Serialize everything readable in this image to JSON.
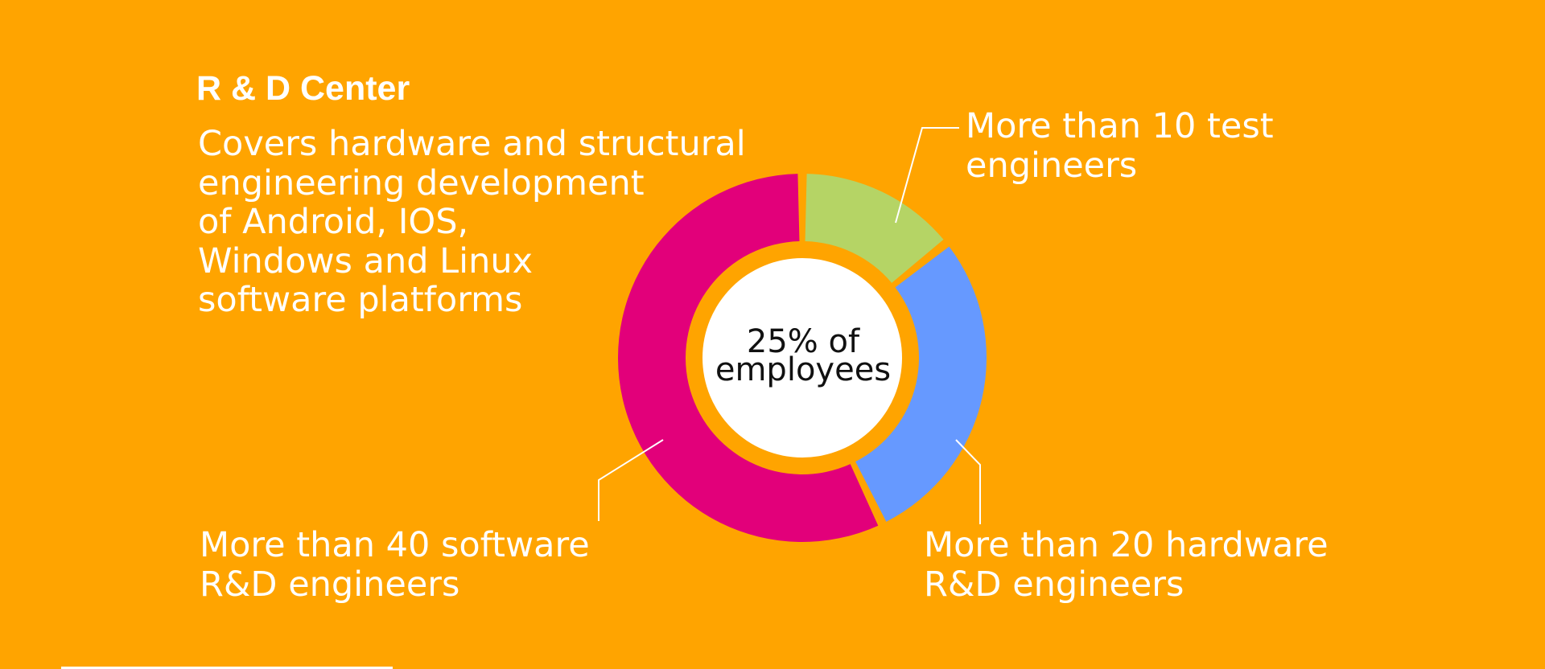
{
  "heading": "R & D Center",
  "description": [
    "Covers hardware and structural",
    "engineering development",
    "of Android, IOS,",
    "Windows and Linux",
    "software platforms"
  ],
  "center_label": [
    "25% of",
    "employees"
  ],
  "colors": {
    "background": "#FFA400",
    "test": "#B5D465",
    "hardware": "#6699FF",
    "software": "#E2007A",
    "center": "#FFFFFF",
    "text": "#FFFFFF"
  },
  "chart_data": {
    "type": "pie",
    "style": "donut",
    "categories": [
      "More than 10 test engineers",
      "More than 20 hardware R&D engineers",
      "More than 40 software R&D engineers"
    ],
    "values": [
      10,
      20,
      40
    ],
    "colors": [
      "#B5D465",
      "#6699FF",
      "#E2007A"
    ],
    "labels": [
      [
        "More than 10 test",
        "engineers"
      ],
      [
        "More than 20 hardware",
        "R&D engineers"
      ],
      [
        "More than 40 software",
        "R&D engineers"
      ]
    ]
  }
}
